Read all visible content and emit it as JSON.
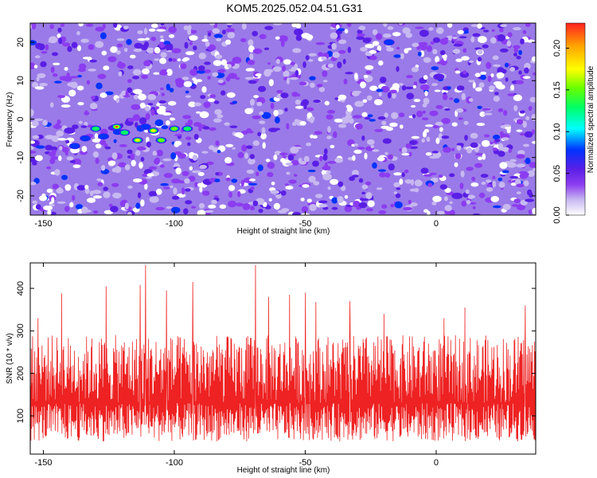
{
  "title": "KOM5.2025.052.04.51.G31",
  "colors": {
    "snr_line": "#ee2222",
    "colormap": [
      "#ffffff",
      "#c7b8f0",
      "#8c3cf0",
      "#5a1fe6",
      "#0033ff",
      "#00ffff",
      "#00ff66",
      "#66ff00",
      "#ffff00",
      "#ffa500",
      "#ff2020"
    ]
  },
  "chart_data": [
    {
      "type": "heatmap",
      "xlabel": "Height of straight line (km)",
      "ylabel": "Frequency (Hz)",
      "xlim": [
        -155,
        38
      ],
      "ylim": [
        -25,
        25
      ],
      "x_ticks": [
        "-150",
        "-100",
        "-50",
        "0"
      ],
      "x_tick_values": [
        -150,
        -100,
        -50,
        0
      ],
      "y_ticks": [
        "-20",
        "-10",
        "0",
        "10",
        "20"
      ],
      "y_tick_values": [
        -20,
        -10,
        0,
        10,
        20
      ],
      "colorbar": {
        "label": "Normalized spectral amplitude",
        "range": [
          0,
          0.23
        ],
        "ticks": [
          "0.00",
          "0.05",
          "0.10",
          "0.15",
          "0.20"
        ],
        "tick_values": [
          0.0,
          0.05,
          0.1,
          0.15,
          0.2
        ]
      },
      "background_amplitude": 0.04,
      "peaks": [
        {
          "x": -122,
          "y": -2,
          "amplitude": 0.22
        },
        {
          "x": -108,
          "y": -3,
          "amplitude": 0.21
        },
        {
          "x": -114,
          "y": -5.5,
          "amplitude": 0.21
        },
        {
          "x": -105,
          "y": -5.5,
          "amplitude": 0.18
        },
        {
          "x": -100,
          "y": -2.5,
          "amplitude": 0.16
        },
        {
          "x": -95,
          "y": -2.5,
          "amplitude": 0.15
        },
        {
          "x": -130,
          "y": -2.5,
          "amplitude": 0.13
        },
        {
          "x": -127,
          "y": -4.5,
          "amplitude": 0.12
        },
        {
          "x": -119,
          "y": -3.5,
          "amplitude": 0.13
        },
        {
          "x": -134,
          "y": -5,
          "amplitude": 0.11
        },
        {
          "x": -111,
          "y": -2,
          "amplitude": 0.12
        },
        {
          "x": -138,
          "y": -7,
          "amplitude": 0.1
        },
        {
          "x": -140,
          "y": -3,
          "amplitude": 0.09
        },
        {
          "x": -18,
          "y": 20,
          "amplitude": 0.1
        },
        {
          "x": 1,
          "y": 11,
          "amplitude": 0.09
        },
        {
          "x": 8,
          "y": -20,
          "amplitude": 0.09
        }
      ]
    },
    {
      "type": "line",
      "xlabel": "Height of straight line (km)",
      "ylabel": "SNR (10 * v/v)",
      "xlim": [
        -155,
        38
      ],
      "ylim": [
        10,
        460
      ],
      "x_ticks": [
        "-150",
        "-100",
        "-50",
        "0"
      ],
      "x_tick_values": [
        -150,
        -100,
        -50,
        0
      ],
      "y_ticks": [
        "100",
        "200",
        "300",
        "400"
      ],
      "y_tick_values": [
        100,
        200,
        300,
        400
      ],
      "series": [
        {
          "color": "#ee2222",
          "baseline": 130,
          "typical_min": 40,
          "typical_max": 290,
          "spikes": [
            {
              "x": -111,
              "y": 455
            },
            {
              "x": -69,
              "y": 455
            },
            {
              "x": -93,
              "y": 415
            },
            {
              "x": -126,
              "y": 405
            },
            {
              "x": -113,
              "y": 408
            },
            {
              "x": -103,
              "y": 395
            },
            {
              "x": -143,
              "y": 388
            },
            {
              "x": -50,
              "y": 390
            },
            {
              "x": -56,
              "y": 385
            },
            {
              "x": -64,
              "y": 380
            },
            {
              "x": -46,
              "y": 368
            },
            {
              "x": -33,
              "y": 370
            },
            {
              "x": 34,
              "y": 360
            },
            {
              "x": 11,
              "y": 355
            },
            {
              "x": -152,
              "y": 330
            },
            {
              "x": -20,
              "y": 340
            },
            {
              "x": 3,
              "y": 330
            }
          ]
        }
      ]
    }
  ]
}
